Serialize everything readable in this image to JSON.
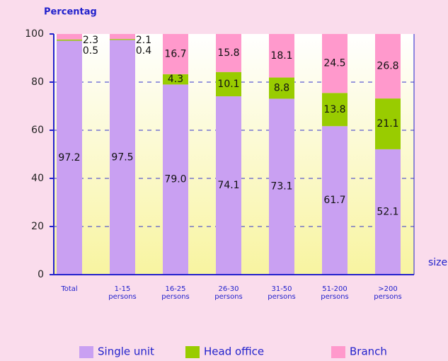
{
  "chart_data": {
    "type": "stacked_bar",
    "title": "Percentag",
    "x_label": "size",
    "categories": [
      "Total",
      "1-15 persons",
      "16-25 persons",
      "26-30 persons",
      "31-50 persons",
      "51-200 persons",
      ">200 persons"
    ],
    "series": [
      {
        "name": "Single unit",
        "color": "#c9a0f2",
        "values": [
          97.2,
          97.5,
          79.0,
          74.1,
          73.1,
          61.7,
          52.1
        ],
        "value_labels": [
          "97.2",
          "97.5",
          "79.0",
          "74.1",
          "73.1",
          "61.7",
          "52.1"
        ]
      },
      {
        "name": "Head office",
        "color": "#99cc00",
        "values": [
          0.5,
          0.4,
          4.3,
          10.1,
          8.8,
          13.8,
          21.1
        ]
      },
      {
        "name": "Branch",
        "color": "#ff99cc",
        "values": [
          2.3,
          2.1,
          16.7,
          15.8,
          18.1,
          24.5,
          26.8
        ]
      }
    ],
    "ylim": [
      0,
      100
    ],
    "yticks": [
      0,
      20,
      40,
      60,
      80,
      100
    ],
    "grid": true
  }
}
